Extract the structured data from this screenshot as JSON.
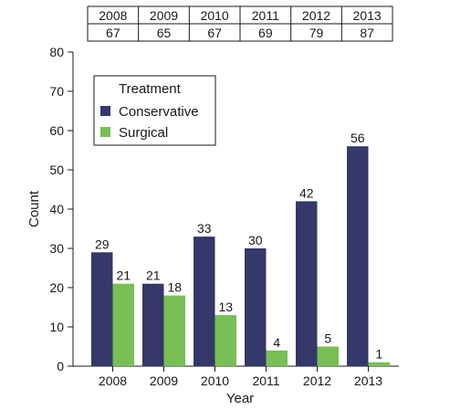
{
  "chart_data": {
    "type": "bar",
    "categories": [
      "2008",
      "2009",
      "2010",
      "2011",
      "2012",
      "2013"
    ],
    "series": [
      {
        "name": "Conservative",
        "values": [
          29,
          21,
          33,
          30,
          42,
          56
        ],
        "color": "#34386a"
      },
      {
        "name": "Surgical",
        "values": [
          21,
          18,
          13,
          4,
          5,
          1
        ],
        "color": "#78bf56"
      }
    ],
    "xlabel": "Year",
    "ylabel": "Count",
    "ylim": [
      0,
      80
    ],
    "yticks": [
      0,
      10,
      20,
      30,
      40,
      50,
      60,
      70,
      80
    ],
    "legend": {
      "title": "Treatment",
      "placement": "top-left"
    },
    "grid": false,
    "totals_table": {
      "years": [
        "2008",
        "2009",
        "2010",
        "2011",
        "2012",
        "2013"
      ],
      "totals": [
        "67",
        "65",
        "67",
        "69",
        "79",
        "87"
      ]
    }
  }
}
